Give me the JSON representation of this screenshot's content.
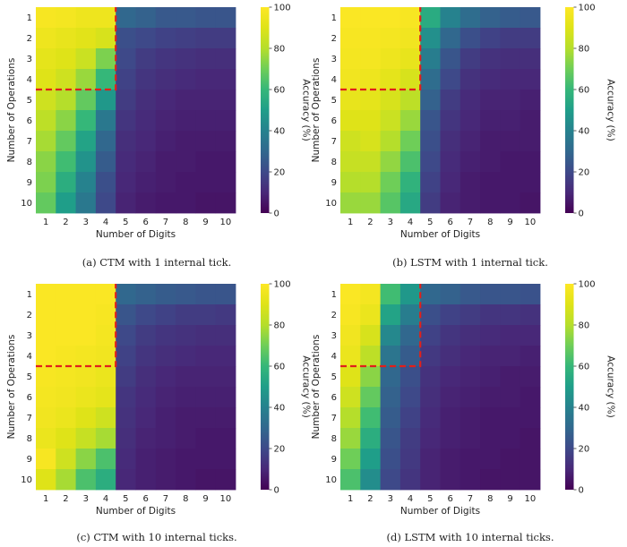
{
  "figure": {
    "x_label": "Number of Digits",
    "y_label": "Number of Operations",
    "colorbar_label": "Accuracy (%)",
    "colorbar_ticks": [
      "0",
      "20",
      "40",
      "60",
      "80",
      "100"
    ],
    "colormap": "viridis",
    "boundary_color": "#e0201b"
  },
  "chart_data": [
    {
      "type": "heatmap",
      "caption": "(a) CTM with 1 internal tick.",
      "xlabel": "Number of Digits",
      "ylabel": "Number of Operations",
      "x_categories": [
        "1",
        "2",
        "3",
        "4",
        "5",
        "6",
        "7",
        "8",
        "9",
        "10"
      ],
      "y_categories": [
        "1",
        "2",
        "3",
        "4",
        "5",
        "6",
        "7",
        "8",
        "9",
        "10"
      ],
      "value_range": [
        0,
        100
      ],
      "boundary": {
        "digits": 4,
        "operations": 4
      },
      "values": [
        [
          98,
          97,
          95,
          95,
          30,
          28,
          25,
          25,
          24,
          24
        ],
        [
          95,
          93,
          91,
          88,
          22,
          20,
          18,
          17,
          16,
          16
        ],
        [
          92,
          90,
          85,
          72,
          20,
          16,
          14,
          13,
          12,
          12
        ],
        [
          90,
          86,
          76,
          60,
          18,
          14,
          12,
          11,
          10,
          10
        ],
        [
          86,
          80,
          68,
          48,
          16,
          12,
          10,
          9,
          9,
          9
        ],
        [
          82,
          74,
          60,
          36,
          14,
          11,
          9,
          8,
          8,
          8
        ],
        [
          78,
          68,
          52,
          30,
          12,
          10,
          8,
          7,
          7,
          7
        ],
        [
          74,
          62,
          46,
          26,
          11,
          9,
          7,
          7,
          6,
          6
        ],
        [
          72,
          56,
          40,
          22,
          10,
          8,
          7,
          6,
          6,
          6
        ],
        [
          68,
          50,
          36,
          20,
          9,
          7,
          6,
          6,
          5,
          5
        ]
      ]
    },
    {
      "type": "heatmap",
      "caption": "(b) LSTM with 1 internal tick.",
      "xlabel": "Number of Digits",
      "ylabel": "Number of Operations",
      "x_categories": [
        "1",
        "2",
        "3",
        "4",
        "5",
        "6",
        "7",
        "8",
        "9",
        "10"
      ],
      "y_categories": [
        "1",
        "2",
        "3",
        "4",
        "5",
        "6",
        "7",
        "8",
        "9",
        "10"
      ],
      "value_range": [
        0,
        100
      ],
      "boundary": {
        "digits": 4,
        "operations": 4
      },
      "values": [
        [
          99,
          99,
          99,
          98,
          55,
          40,
          32,
          28,
          26,
          25
        ],
        [
          98,
          98,
          97,
          96,
          45,
          30,
          22,
          18,
          16,
          16
        ],
        [
          97,
          97,
          95,
          93,
          38,
          24,
          16,
          13,
          12,
          12
        ],
        [
          96,
          95,
          92,
          88,
          32,
          20,
          13,
          11,
          10,
          10
        ],
        [
          93,
          92,
          88,
          82,
          28,
          16,
          11,
          9,
          9,
          8
        ],
        [
          90,
          90,
          85,
          76,
          24,
          14,
          10,
          8,
          8,
          7
        ],
        [
          86,
          88,
          80,
          70,
          22,
          12,
          9,
          7,
          7,
          7
        ],
        [
          84,
          84,
          75,
          64,
          20,
          11,
          8,
          7,
          6,
          6
        ],
        [
          80,
          80,
          70,
          58,
          18,
          10,
          7,
          6,
          6,
          6
        ],
        [
          76,
          76,
          66,
          54,
          16,
          9,
          7,
          6,
          6,
          5
        ]
      ]
    },
    {
      "type": "heatmap",
      "caption": "(c) CTM with 10 internal ticks.",
      "xlabel": "Number of Digits",
      "ylabel": "Number of Operations",
      "x_categories": [
        "1",
        "2",
        "3",
        "4",
        "5",
        "6",
        "7",
        "8",
        "9",
        "10"
      ],
      "y_categories": [
        "1",
        "2",
        "3",
        "4",
        "5",
        "6",
        "7",
        "8",
        "9",
        "10"
      ],
      "value_range": [
        0,
        100
      ],
      "boundary": {
        "digits": 4,
        "operations": 4
      },
      "values": [
        [
          99,
          99,
          99,
          99,
          30,
          28,
          26,
          25,
          24,
          24
        ],
        [
          99,
          99,
          99,
          98,
          24,
          20,
          18,
          16,
          16,
          15
        ],
        [
          99,
          99,
          99,
          97,
          20,
          16,
          14,
          13,
          12,
          12
        ],
        [
          99,
          98,
          97,
          96,
          18,
          14,
          12,
          11,
          10,
          10
        ],
        [
          98,
          97,
          96,
          94,
          16,
          12,
          10,
          9,
          9,
          9
        ],
        [
          97,
          96,
          94,
          92,
          14,
          11,
          9,
          8,
          8,
          8
        ],
        [
          96,
          94,
          90,
          86,
          13,
          10,
          8,
          7,
          7,
          7
        ],
        [
          94,
          90,
          84,
          78,
          12,
          9,
          8,
          7,
          6,
          6
        ],
        [
          98,
          86,
          74,
          64,
          11,
          8,
          7,
          6,
          6,
          6
        ],
        [
          90,
          78,
          64,
          56,
          10,
          8,
          7,
          6,
          5,
          5
        ]
      ]
    },
    {
      "type": "heatmap",
      "caption": "(d) LSTM with 10 internal ticks.",
      "xlabel": "Number of Digits",
      "ylabel": "Number of Operations",
      "x_categories": [
        "1",
        "2",
        "3",
        "4",
        "5",
        "6",
        "7",
        "8",
        "9",
        "10"
      ],
      "y_categories": [
        "1",
        "2",
        "3",
        "4",
        "5",
        "6",
        "7",
        "8",
        "9",
        "10"
      ],
      "value_range": [
        0,
        100
      ],
      "boundary": {
        "digits": 4,
        "operations": 4
      },
      "values": [
        [
          99,
          97,
          62,
          48,
          30,
          28,
          25,
          24,
          24,
          23
        ],
        [
          98,
          94,
          52,
          38,
          22,
          18,
          16,
          14,
          14,
          13
        ],
        [
          96,
          88,
          42,
          30,
          18,
          14,
          12,
          11,
          10,
          10
        ],
        [
          94,
          82,
          35,
          26,
          15,
          12,
          10,
          9,
          9,
          8
        ],
        [
          90,
          74,
          30,
          22,
          13,
          10,
          9,
          8,
          7,
          7
        ],
        [
          86,
          68,
          28,
          20,
          12,
          9,
          8,
          7,
          7,
          6
        ],
        [
          80,
          62,
          26,
          18,
          11,
          8,
          7,
          6,
          6,
          6
        ],
        [
          76,
          56,
          24,
          16,
          10,
          8,
          7,
          6,
          6,
          5
        ],
        [
          70,
          50,
          22,
          15,
          9,
          7,
          6,
          6,
          5,
          5
        ],
        [
          64,
          44,
          20,
          14,
          9,
          7,
          6,
          5,
          5,
          5
        ]
      ]
    }
  ]
}
